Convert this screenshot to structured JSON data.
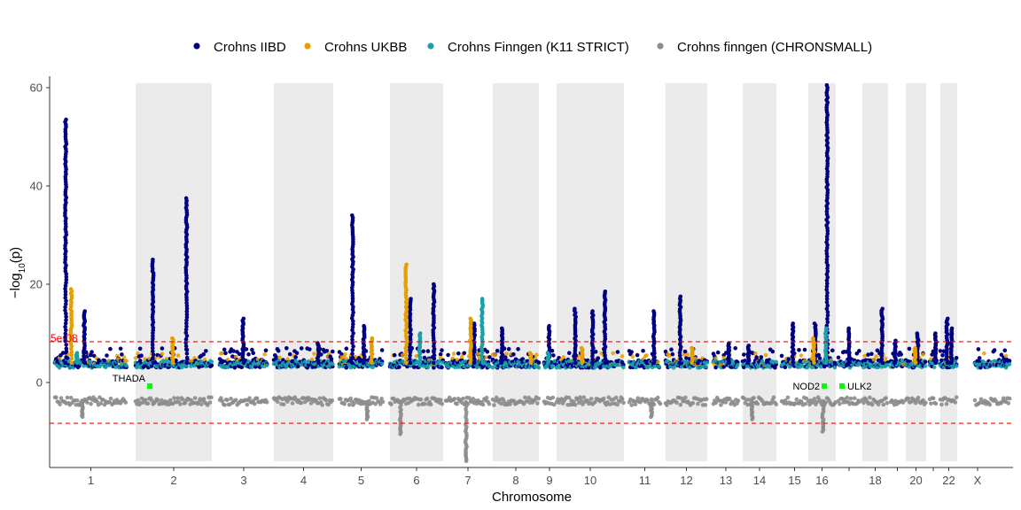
{
  "chart_data": {
    "type": "scatter",
    "subtype": "manhattan",
    "title": "",
    "xlabel": "Chromosome",
    "ylabel_prefix": "−log",
    "ylabel_sub": "10",
    "ylabel_suffix": "(p)",
    "ylim": [
      -16,
      61
    ],
    "yticks": [
      0,
      20,
      40,
      60
    ],
    "grid": false,
    "legend_position": "top",
    "chromosomes": [
      "1",
      "2",
      "3",
      "4",
      "5",
      "6",
      "7",
      "8",
      "9",
      "10",
      "11",
      "12",
      "13",
      "14",
      "15",
      "16",
      "17",
      "18",
      "19",
      "20",
      "21",
      "22",
      "X"
    ],
    "chromosome_tick_labels": [
      "1",
      "2",
      "3",
      "4",
      "5",
      "6",
      "7",
      "8",
      "9",
      "10",
      "11",
      "12",
      "13",
      "14",
      "15",
      "16",
      "",
      "18",
      "",
      "20",
      "",
      "22",
      "X"
    ],
    "shaded_chromosomes": [
      "2",
      "4",
      "6",
      "8",
      "10",
      "12",
      "14",
      "16",
      "18",
      "20",
      "22"
    ],
    "threshold": {
      "label": "5e-08",
      "upper": 8.3,
      "lower": -8.3,
      "color": "#ff0000"
    },
    "series": [
      {
        "name": "Crohns IIBD",
        "color": "#000080",
        "peaks": [
          [
            "1",
            53.5
          ],
          [
            "1",
            14.5
          ],
          [
            "2",
            37.5
          ],
          [
            "2",
            25
          ],
          [
            "3",
            13
          ],
          [
            "4",
            8
          ],
          [
            "5",
            34
          ],
          [
            "5",
            11.5
          ],
          [
            "6",
            20
          ],
          [
            "6",
            17
          ],
          [
            "7",
            12
          ],
          [
            "8",
            11
          ],
          [
            "9",
            11.5
          ],
          [
            "10",
            18.5
          ],
          [
            "10",
            15
          ],
          [
            "10",
            14.5
          ],
          [
            "11",
            14.5
          ],
          [
            "12",
            17.5
          ],
          [
            "13",
            8
          ],
          [
            "14",
            7.5
          ],
          [
            "15",
            12
          ],
          [
            "16",
            60.5
          ],
          [
            "16",
            12
          ],
          [
            "17",
            11
          ],
          [
            "18",
            15
          ],
          [
            "19",
            8.5
          ],
          [
            "20",
            10
          ],
          [
            "21",
            10
          ],
          [
            "22",
            13
          ],
          [
            "22",
            11
          ]
        ]
      },
      {
        "name": "Crohns UKBB",
        "color": "#e69f00",
        "peaks": [
          [
            "1",
            19
          ],
          [
            "2",
            9
          ],
          [
            "5",
            9
          ],
          [
            "6",
            24
          ],
          [
            "7",
            13
          ],
          [
            "8",
            6
          ],
          [
            "10",
            7
          ],
          [
            "12",
            7
          ],
          [
            "16",
            9
          ],
          [
            "20",
            7
          ]
        ]
      },
      {
        "name": "Crohns Finngen (K11 STRICT)",
        "color": "#1aa0a8",
        "peaks": [
          [
            "1",
            6
          ],
          [
            "6",
            10
          ],
          [
            "7",
            17
          ],
          [
            "9",
            6
          ],
          [
            "16",
            11
          ]
        ]
      },
      {
        "name": "Crohns finngen (CHRONSMALL)",
        "color": "#8c8c8c",
        "peaks": [
          [
            "1",
            -7
          ],
          [
            "5",
            -7.5
          ],
          [
            "6",
            -10.5
          ],
          [
            "7",
            -16
          ],
          [
            "11",
            -7
          ],
          [
            "14",
            -7.5
          ],
          [
            "16",
            -10
          ]
        ]
      }
    ],
    "annotations": [
      {
        "label": "THADA",
        "chromosome": "2",
        "value": -1,
        "label_side": "left",
        "marker_color": "#00ff00"
      },
      {
        "label": "NOD2",
        "chromosome": "16",
        "value": -1,
        "label_side": "left",
        "marker_color": "#00ff00"
      },
      {
        "label": "ULK2",
        "chromosome": "17",
        "value": -1,
        "label_side": "right",
        "marker_color": "#00ff00"
      }
    ]
  }
}
